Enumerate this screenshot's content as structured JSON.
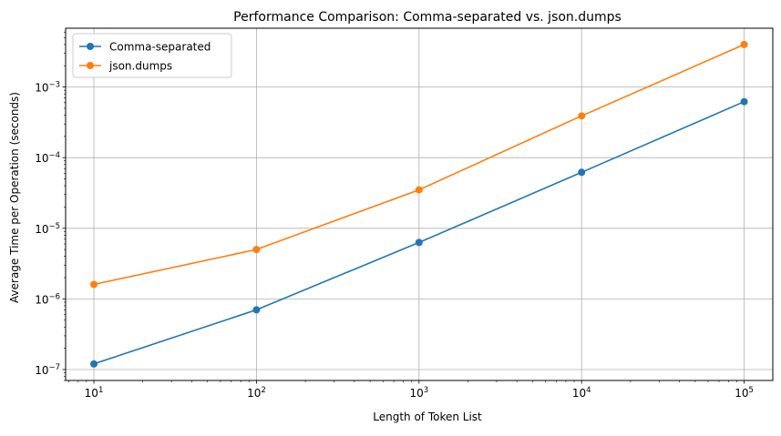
{
  "chart_data": {
    "type": "line",
    "title": "Performance Comparison: Comma-separated vs. json.dumps",
    "xlabel": "Length of Token List",
    "ylabel": "Average Time per Operation (seconds)",
    "xscale": "log",
    "yscale": "log",
    "x": [
      10,
      100,
      1000,
      10000,
      100000
    ],
    "xlim": [
      6.7,
      150000
    ],
    "ylim": [
      7e-08,
      0.0068
    ],
    "xticks": [
      {
        "value": 10,
        "base": "10",
        "exp": "1"
      },
      {
        "value": 100,
        "base": "10",
        "exp": "2"
      },
      {
        "value": 1000,
        "base": "10",
        "exp": "3"
      },
      {
        "value": 10000,
        "base": "10",
        "exp": "4"
      },
      {
        "value": 100000,
        "base": "10",
        "exp": "5"
      }
    ],
    "yticks": [
      {
        "value": 1e-07,
        "base": "10",
        "exp": "−7"
      },
      {
        "value": 1e-06,
        "base": "10",
        "exp": "−6"
      },
      {
        "value": 1e-05,
        "base": "10",
        "exp": "−5"
      },
      {
        "value": 0.0001,
        "base": "10",
        "exp": "−4"
      },
      {
        "value": 0.001,
        "base": "10",
        "exp": "−3"
      }
    ],
    "grid": true,
    "legend_position": "top-left",
    "series": [
      {
        "name": "Comma-separated",
        "color": "#1f77b4",
        "values": [
          1.2e-07,
          7e-07,
          6.3e-06,
          6.2e-05,
          0.00062
        ]
      },
      {
        "name": "json.dumps",
        "color": "#ff7f0e",
        "values": [
          1.6e-06,
          5e-06,
          3.5e-05,
          0.00039,
          0.004
        ]
      }
    ]
  }
}
